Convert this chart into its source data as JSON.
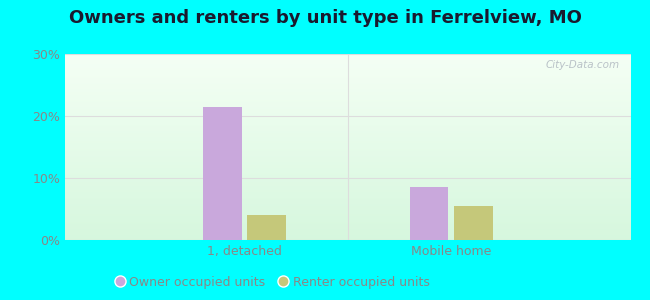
{
  "title": "Owners and renters by unit type in Ferrelview, MO",
  "categories": [
    "1, detached",
    "Mobile home"
  ],
  "owner_values": [
    21.5,
    8.5
  ],
  "renter_values": [
    4.0,
    5.5
  ],
  "owner_color": "#c9a8dc",
  "renter_color": "#c5c87a",
  "ylim": [
    0,
    30
  ],
  "yticks": [
    0,
    10,
    20,
    30
  ],
  "ytick_labels": [
    "0%",
    "10%",
    "20%",
    "30%"
  ],
  "bar_width": 0.28,
  "group_positions": [
    1.0,
    2.5
  ],
  "legend_owner": "Owner occupied units",
  "legend_renter": "Renter occupied units",
  "outer_bg": "#00ffff",
  "watermark": "City-Data.com",
  "title_fontsize": 13,
  "axis_fontsize": 9,
  "legend_fontsize": 9,
  "grid_color": "#dddddd",
  "tick_color": "#888888"
}
